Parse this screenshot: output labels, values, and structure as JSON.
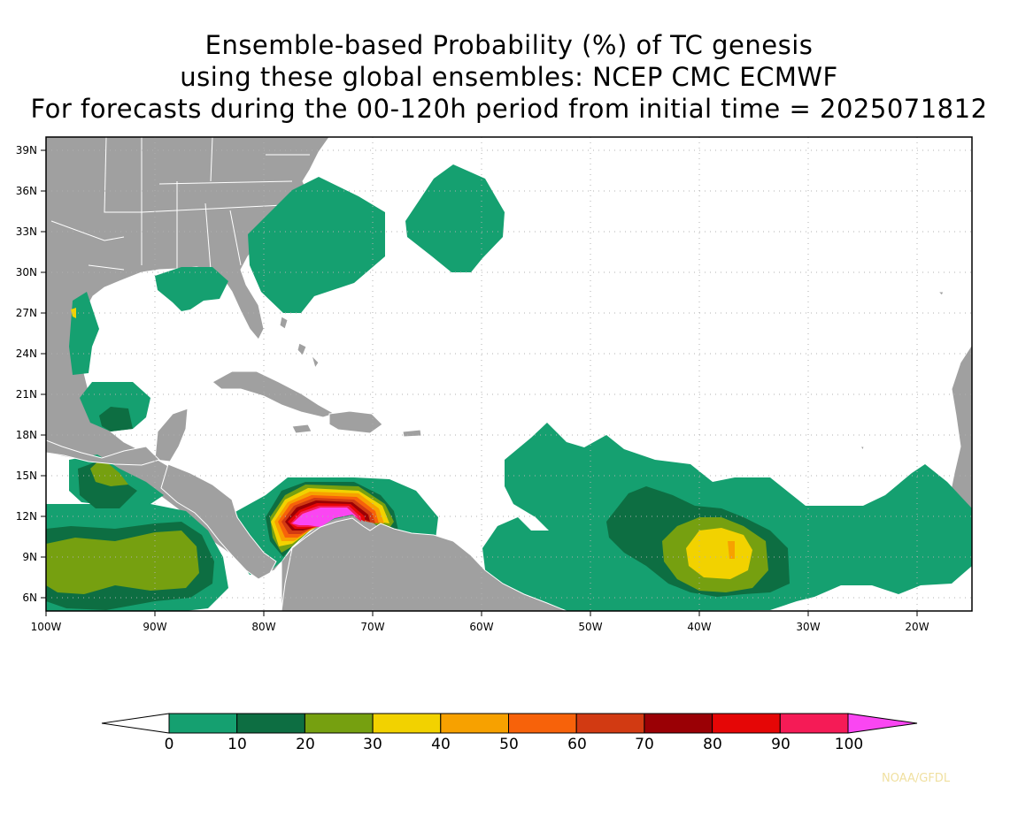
{
  "title": {
    "line1": "Ensemble-based Probability (%) of TC genesis",
    "line2": "using these global ensembles:   NCEP CMC ECMWF",
    "line3": "For forecasts during the 00-120h period from initial time = 2025071812"
  },
  "map": {
    "lat_labels": [
      "39N",
      "36N",
      "33N",
      "30N",
      "27N",
      "24N",
      "21N",
      "18N",
      "15N",
      "12N",
      "9N",
      "6N"
    ],
    "lon_labels": [
      "100W",
      "90W",
      "80W",
      "70W",
      "60W",
      "50W",
      "40W",
      "30W",
      "20W"
    ],
    "land_color": "#a0a0a0",
    "ocean_color": "#ffffff",
    "border_color": "#ffffff"
  },
  "colorbar": {
    "labels": [
      "0",
      "10",
      "20",
      "30",
      "40",
      "50",
      "60",
      "70",
      "80",
      "90",
      "100"
    ],
    "colors": [
      "#ffffff",
      "#15a070",
      "#0d6e42",
      "#76a010",
      "#f2d200",
      "#f7a100",
      "#f7620a",
      "#d23a12",
      "#9a0005",
      "#e50606",
      "#f51b56",
      "#fa46f2"
    ]
  },
  "credit": "NOAA/GFDL"
}
